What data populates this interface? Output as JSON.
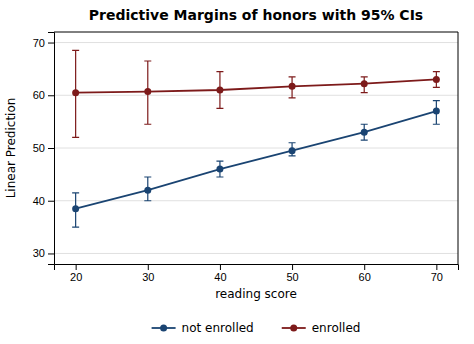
{
  "chart_data": {
    "type": "line",
    "title": "Predictive Margins of honors with 95% CIs",
    "xlabel": "reading score",
    "ylabel": "Linear Prediction",
    "x": [
      20,
      30,
      40,
      50,
      60,
      70
    ],
    "series": [
      {
        "name": "not enrolled",
        "color": "#1a4472",
        "marker": "circle",
        "line_style": "solid",
        "values": [
          38.5,
          42.0,
          46.0,
          49.5,
          53.0,
          57.0
        ],
        "ci_low": [
          35.0,
          40.0,
          44.5,
          48.5,
          51.5,
          54.5
        ],
        "ci_high": [
          41.5,
          44.5,
          47.5,
          51.0,
          54.5,
          59.0
        ]
      },
      {
        "name": "enrolled",
        "color": "#7d1a1a",
        "marker": "circle",
        "line_style": "solid",
        "values": [
          60.5,
          60.7,
          61.0,
          61.7,
          62.2,
          63.0
        ],
        "ci_low": [
          52.0,
          54.5,
          57.5,
          59.5,
          60.5,
          61.5
        ],
        "ci_high": [
          68.5,
          66.5,
          64.5,
          63.5,
          63.5,
          64.5
        ]
      }
    ],
    "xlim": [
      17,
      73
    ],
    "xticks": [
      20,
      30,
      40,
      50,
      60,
      70
    ],
    "ylim": [
      28,
      72
    ],
    "yticks": [
      30,
      40,
      50,
      60,
      70
    ],
    "grid": "y",
    "legend": "bottom"
  }
}
